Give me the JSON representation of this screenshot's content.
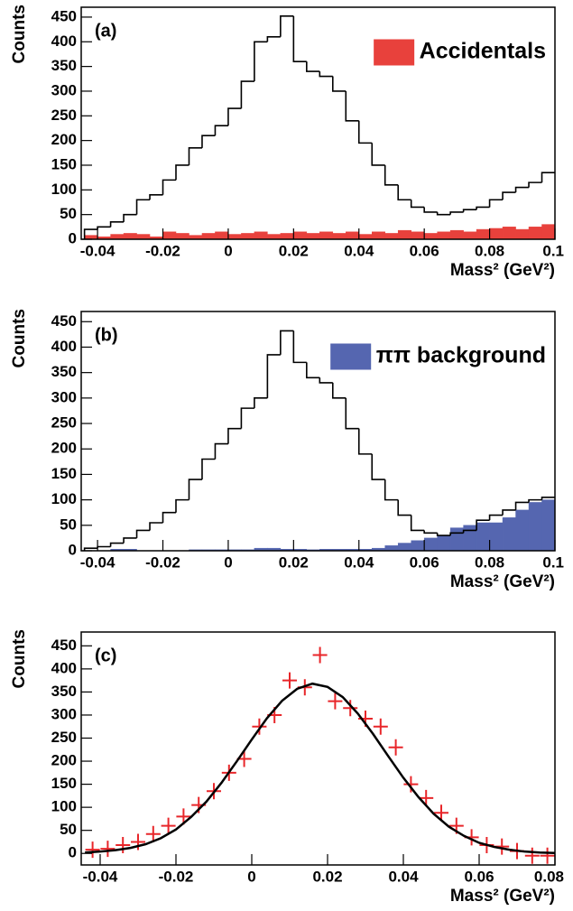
{
  "chart_data": [
    {
      "type": "histogram",
      "panel_label": "(a)",
      "ylabel": "Counts",
      "xlabel": "Mass² (GeV²)",
      "xlim": [
        -0.045,
        0.1
      ],
      "ylim": [
        0,
        470
      ],
      "xticks": [
        -0.04,
        -0.02,
        0,
        0.02,
        0.04,
        0.06,
        0.08,
        0.1
      ],
      "yticks": [
        0,
        50,
        100,
        150,
        200,
        250,
        300,
        350,
        400,
        450
      ],
      "legend": "upper right",
      "bins": [
        -0.044,
        -0.04,
        -0.036,
        -0.032,
        -0.028,
        -0.024,
        -0.02,
        -0.016,
        -0.012,
        -0.008,
        -0.004,
        0,
        0.004,
        0.008,
        0.012,
        0.016,
        0.02,
        0.024,
        0.028,
        0.032,
        0.036,
        0.04,
        0.044,
        0.048,
        0.052,
        0.056,
        0.06,
        0.064,
        0.068,
        0.072,
        0.076,
        0.08,
        0.084,
        0.088,
        0.092,
        0.096,
        0.1
      ],
      "series": [
        {
          "name": "Accidentals",
          "color": "#e8413c",
          "style": "filled",
          "values": [
            8,
            5,
            10,
            12,
            10,
            5,
            15,
            12,
            8,
            12,
            15,
            10,
            12,
            15,
            10,
            12,
            15,
            12,
            15,
            12,
            15,
            10,
            15,
            12,
            18,
            15,
            12,
            15,
            18,
            15,
            20,
            22,
            25,
            20,
            25,
            30
          ]
        },
        {
          "color": "#000000",
          "style": "step",
          "values": [
            20,
            25,
            35,
            50,
            80,
            90,
            120,
            150,
            185,
            210,
            230,
            265,
            320,
            400,
            410,
            452,
            360,
            340,
            330,
            300,
            240,
            195,
            150,
            110,
            80,
            65,
            55,
            50,
            55,
            60,
            65,
            80,
            95,
            105,
            115,
            135
          ]
        }
      ]
    },
    {
      "type": "histogram",
      "panel_label": "(b)",
      "ylabel": "Counts",
      "xlabel": "Mass² (GeV²)",
      "xlim": [
        -0.045,
        0.1
      ],
      "ylim": [
        0,
        470
      ],
      "xticks": [
        -0.04,
        -0.02,
        0,
        0.02,
        0.04,
        0.06,
        0.08,
        0.1
      ],
      "yticks": [
        0,
        50,
        100,
        150,
        200,
        250,
        300,
        350,
        400,
        450
      ],
      "legend": "upper right",
      "bins": [
        -0.044,
        -0.04,
        -0.036,
        -0.032,
        -0.028,
        -0.024,
        -0.02,
        -0.016,
        -0.012,
        -0.008,
        -0.004,
        0,
        0.004,
        0.008,
        0.012,
        0.016,
        0.02,
        0.024,
        0.028,
        0.032,
        0.036,
        0.04,
        0.044,
        0.048,
        0.052,
        0.056,
        0.06,
        0.064,
        0.068,
        0.072,
        0.076,
        0.08,
        0.084,
        0.088,
        0.092,
        0.096,
        0.1
      ],
      "series": [
        {
          "name": "ππ background",
          "color": "#5566b0",
          "style": "filled",
          "values": [
            0,
            0,
            3,
            3,
            0,
            0,
            0,
            0,
            2,
            2,
            2,
            2,
            2,
            5,
            5,
            3,
            3,
            2,
            3,
            3,
            3,
            3,
            5,
            10,
            15,
            20,
            25,
            30,
            45,
            50,
            55,
            55,
            65,
            80,
            95,
            100
          ]
        },
        {
          "color": "#000000",
          "style": "step",
          "values": [
            5,
            8,
            15,
            25,
            40,
            55,
            75,
            100,
            140,
            180,
            210,
            240,
            280,
            300,
            385,
            432,
            370,
            340,
            330,
            300,
            240,
            190,
            140,
            100,
            70,
            40,
            35,
            30,
            35,
            40,
            60,
            70,
            80,
            95,
            100,
            105
          ]
        }
      ]
    },
    {
      "type": "scatter",
      "panel_label": "(c)",
      "ylabel": "Counts",
      "xlabel": "Mass² (GeV²)",
      "xlim": [
        -0.045,
        0.08
      ],
      "ylim": [
        -25,
        480
      ],
      "xticks": [
        -0.04,
        -0.02,
        0,
        0.02,
        0.04,
        0.06,
        0.08
      ],
      "yticks": [
        0,
        50,
        100,
        150,
        200,
        250,
        300,
        350,
        400,
        450
      ],
      "series": [
        {
          "type": "scatter",
          "color": "#e8262a",
          "x": [
            -0.042,
            -0.038,
            -0.034,
            -0.03,
            -0.026,
            -0.022,
            -0.018,
            -0.014,
            -0.01,
            -0.006,
            -0.002,
            0.002,
            0.006,
            0.01,
            0.014,
            0.018,
            0.022,
            0.026,
            0.03,
            0.034,
            0.038,
            0.042,
            0.046,
            0.05,
            0.054,
            0.058,
            0.062,
            0.066,
            0.07,
            0.074,
            0.078
          ],
          "values": [
            8,
            10,
            18,
            25,
            42,
            60,
            80,
            105,
            135,
            175,
            205,
            275,
            300,
            375,
            360,
            430,
            330,
            315,
            292,
            275,
            230,
            150,
            120,
            88,
            60,
            35,
            18,
            15,
            5,
            -5,
            -5
          ]
        },
        {
          "type": "line",
          "color": "#000000",
          "x": [
            -0.044,
            -0.04,
            -0.036,
            -0.032,
            -0.028,
            -0.024,
            -0.02,
            -0.016,
            -0.012,
            -0.008,
            -0.004,
            0,
            0.004,
            0.008,
            0.012,
            0.016,
            0.02,
            0.024,
            0.028,
            0.032,
            0.036,
            0.04,
            0.044,
            0.048,
            0.052,
            0.056,
            0.06,
            0.064,
            0.068,
            0.072,
            0.076,
            0.08
          ],
          "values": [
            2,
            4,
            7,
            12,
            20,
            33,
            52,
            79,
            112,
            153,
            199,
            247,
            293,
            331,
            357,
            368,
            361,
            339,
            303,
            259,
            211,
            164,
            122,
            86,
            58,
            38,
            23,
            14,
            8,
            4,
            2,
            1
          ]
        }
      ]
    }
  ]
}
